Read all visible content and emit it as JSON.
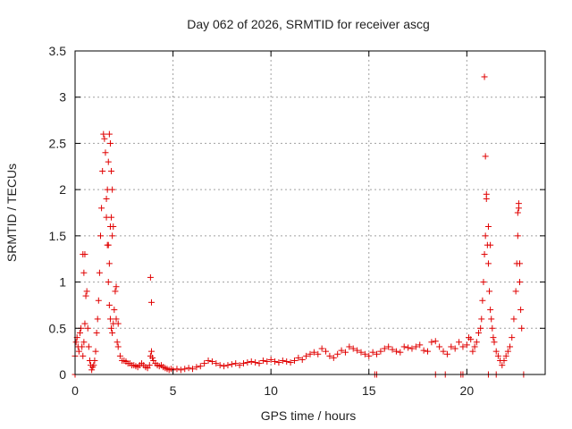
{
  "chart_data": {
    "type": "scatter",
    "title": "Day 062 of 2026, SRMTID for receiver ascg",
    "xlabel": "GPS time / hours",
    "ylabel": "SRMTID / TECUs",
    "xlim": [
      0,
      24
    ],
    "ylim": [
      0,
      3.5
    ],
    "x_ticks": [
      0,
      5,
      10,
      15,
      20
    ],
    "x_tick_labels": [
      "0",
      "5",
      "10",
      "15",
      "20"
    ],
    "y_ticks": [
      0,
      0.5,
      1,
      1.5,
      2,
      2.5,
      3,
      3.5
    ],
    "y_tick_labels": [
      "0",
      "0.5",
      "1",
      "1.5",
      "2",
      "2.5",
      "3",
      "3.5"
    ],
    "grid": true,
    "marker": "+",
    "marker_color": "#e00000",
    "series": [
      {
        "name": "SRMTID",
        "x": [
          0.0,
          0.05,
          0.1,
          0.15,
          0.2,
          0.25,
          0.3,
          0.35,
          0.4,
          0.45,
          0.5,
          0.55,
          0.6,
          0.65,
          0.7,
          0.75,
          0.8,
          0.85,
          0.9,
          0.95,
          1.0,
          1.05,
          1.1,
          1.15,
          1.2,
          1.25,
          1.3,
          1.35,
          1.4,
          1.45,
          1.5,
          1.55,
          1.6,
          1.65,
          1.7,
          1.75,
          1.8,
          1.85,
          1.9,
          1.95,
          2.0,
          2.05,
          2.1,
          2.15,
          2.2,
          2.3,
          2.4,
          2.5,
          2.6,
          2.7,
          2.8,
          2.9,
          3.0,
          3.1,
          3.2,
          3.3,
          3.4,
          3.5,
          3.6,
          3.7,
          3.8,
          3.85,
          3.9,
          3.95,
          4.0,
          4.1,
          4.2,
          4.3,
          4.4,
          4.5,
          4.6,
          4.7,
          4.8,
          4.9,
          5.0,
          5.2,
          5.4,
          5.6,
          5.8,
          6.0,
          6.2,
          6.4,
          6.6,
          6.8,
          7.0,
          7.2,
          7.4,
          7.6,
          7.8,
          8.0,
          8.2,
          8.4,
          8.6,
          8.8,
          9.0,
          9.2,
          9.4,
          9.6,
          9.8,
          10.0,
          10.2,
          10.4,
          10.6,
          10.8,
          11.0,
          11.2,
          11.4,
          11.6,
          11.8,
          12.0,
          12.2,
          12.4,
          12.6,
          12.8,
          13.0,
          13.2,
          13.4,
          13.6,
          13.8,
          14.0,
          14.2,
          14.4,
          14.6,
          14.8,
          15.0,
          15.2,
          15.4,
          15.6,
          15.8,
          16.0,
          16.2,
          16.4,
          16.6,
          16.8,
          17.0,
          17.2,
          17.4,
          17.6,
          17.8,
          18.0,
          18.2,
          18.4,
          18.6,
          18.8,
          19.0,
          19.2,
          19.4,
          19.6,
          19.8,
          20.0,
          20.1,
          20.2,
          20.3,
          20.4,
          20.5,
          20.6,
          20.7,
          20.75,
          20.8,
          20.85,
          20.9,
          20.95,
          21.0,
          21.05,
          21.1,
          21.15,
          21.2,
          21.25,
          21.3,
          21.35,
          21.4,
          21.5,
          21.6,
          21.7,
          21.8,
          21.9,
          22.0,
          22.1,
          22.2,
          22.3,
          22.4,
          22.5,
          22.55,
          22.6,
          22.65,
          22.7,
          22.75,
          22.8,
          1.6,
          1.65,
          1.7,
          1.75,
          1.8,
          1.85,
          1.9,
          1.95,
          0.4,
          0.45,
          0.5,
          1.7,
          1.75,
          1.8,
          1.85,
          1.9,
          2.1,
          2.2,
          3.85,
          3.9,
          20.9,
          20.95,
          21.0,
          21.1,
          21.2,
          22.6,
          22.65,
          22.7,
          0.0,
          15.3,
          15.4,
          18.4,
          18.9,
          19.7,
          19.8,
          21.1,
          21.5,
          22.9
        ],
        "y": [
          0.2,
          0.35,
          0.4,
          0.3,
          0.25,
          0.45,
          0.5,
          0.3,
          0.2,
          0.35,
          0.55,
          0.85,
          0.9,
          0.5,
          0.3,
          0.15,
          0.1,
          0.05,
          0.08,
          0.1,
          0.15,
          0.25,
          0.45,
          0.6,
          0.8,
          1.1,
          1.5,
          1.8,
          2.2,
          2.6,
          2.55,
          2.4,
          1.9,
          1.4,
          1.0,
          0.75,
          0.6,
          0.5,
          0.45,
          0.55,
          0.7,
          0.9,
          0.6,
          0.35,
          0.3,
          0.2,
          0.15,
          0.15,
          0.14,
          0.12,
          0.12,
          0.1,
          0.1,
          0.09,
          0.08,
          0.1,
          0.12,
          0.1,
          0.08,
          0.07,
          0.1,
          0.2,
          0.25,
          0.18,
          0.15,
          0.12,
          0.1,
          0.09,
          0.1,
          0.08,
          0.07,
          0.06,
          0.05,
          0.06,
          0.05,
          0.06,
          0.05,
          0.06,
          0.07,
          0.06,
          0.08,
          0.09,
          0.12,
          0.15,
          0.14,
          0.12,
          0.1,
          0.09,
          0.1,
          0.11,
          0.12,
          0.1,
          0.12,
          0.13,
          0.14,
          0.13,
          0.12,
          0.15,
          0.14,
          0.16,
          0.14,
          0.13,
          0.15,
          0.14,
          0.13,
          0.15,
          0.18,
          0.16,
          0.2,
          0.22,
          0.24,
          0.22,
          0.28,
          0.25,
          0.2,
          0.18,
          0.22,
          0.26,
          0.24,
          0.3,
          0.28,
          0.26,
          0.24,
          0.22,
          0.2,
          0.24,
          0.22,
          0.25,
          0.28,
          0.3,
          0.27,
          0.25,
          0.24,
          0.3,
          0.29,
          0.28,
          0.3,
          0.32,
          0.26,
          0.25,
          0.35,
          0.36,
          0.3,
          0.25,
          0.22,
          0.3,
          0.28,
          0.35,
          0.3,
          0.32,
          0.4,
          0.38,
          0.25,
          0.3,
          0.35,
          0.45,
          0.5,
          0.6,
          0.8,
          1.0,
          1.3,
          1.5,
          1.9,
          1.4,
          1.2,
          0.9,
          0.7,
          0.6,
          0.5,
          0.4,
          0.35,
          0.25,
          0.2,
          0.15,
          0.1,
          0.15,
          0.2,
          0.25,
          0.3,
          0.4,
          0.6,
          0.9,
          1.2,
          1.5,
          1.8,
          1.0,
          0.7,
          0.5,
          1.7,
          2.0,
          2.3,
          2.6,
          2.5,
          2.2,
          2.0,
          1.6,
          1.3,
          1.1,
          1.3,
          1.4,
          1.2,
          1.6,
          1.7,
          1.5,
          0.95,
          0.55,
          1.05,
          0.78,
          3.22,
          2.36,
          1.95,
          1.6,
          1.4,
          1.75,
          1.85,
          1.2,
          0.0,
          0.0,
          0.0,
          0.0,
          0.0,
          0.0,
          0.0,
          0.0,
          0.0,
          0.0
        ]
      }
    ]
  }
}
